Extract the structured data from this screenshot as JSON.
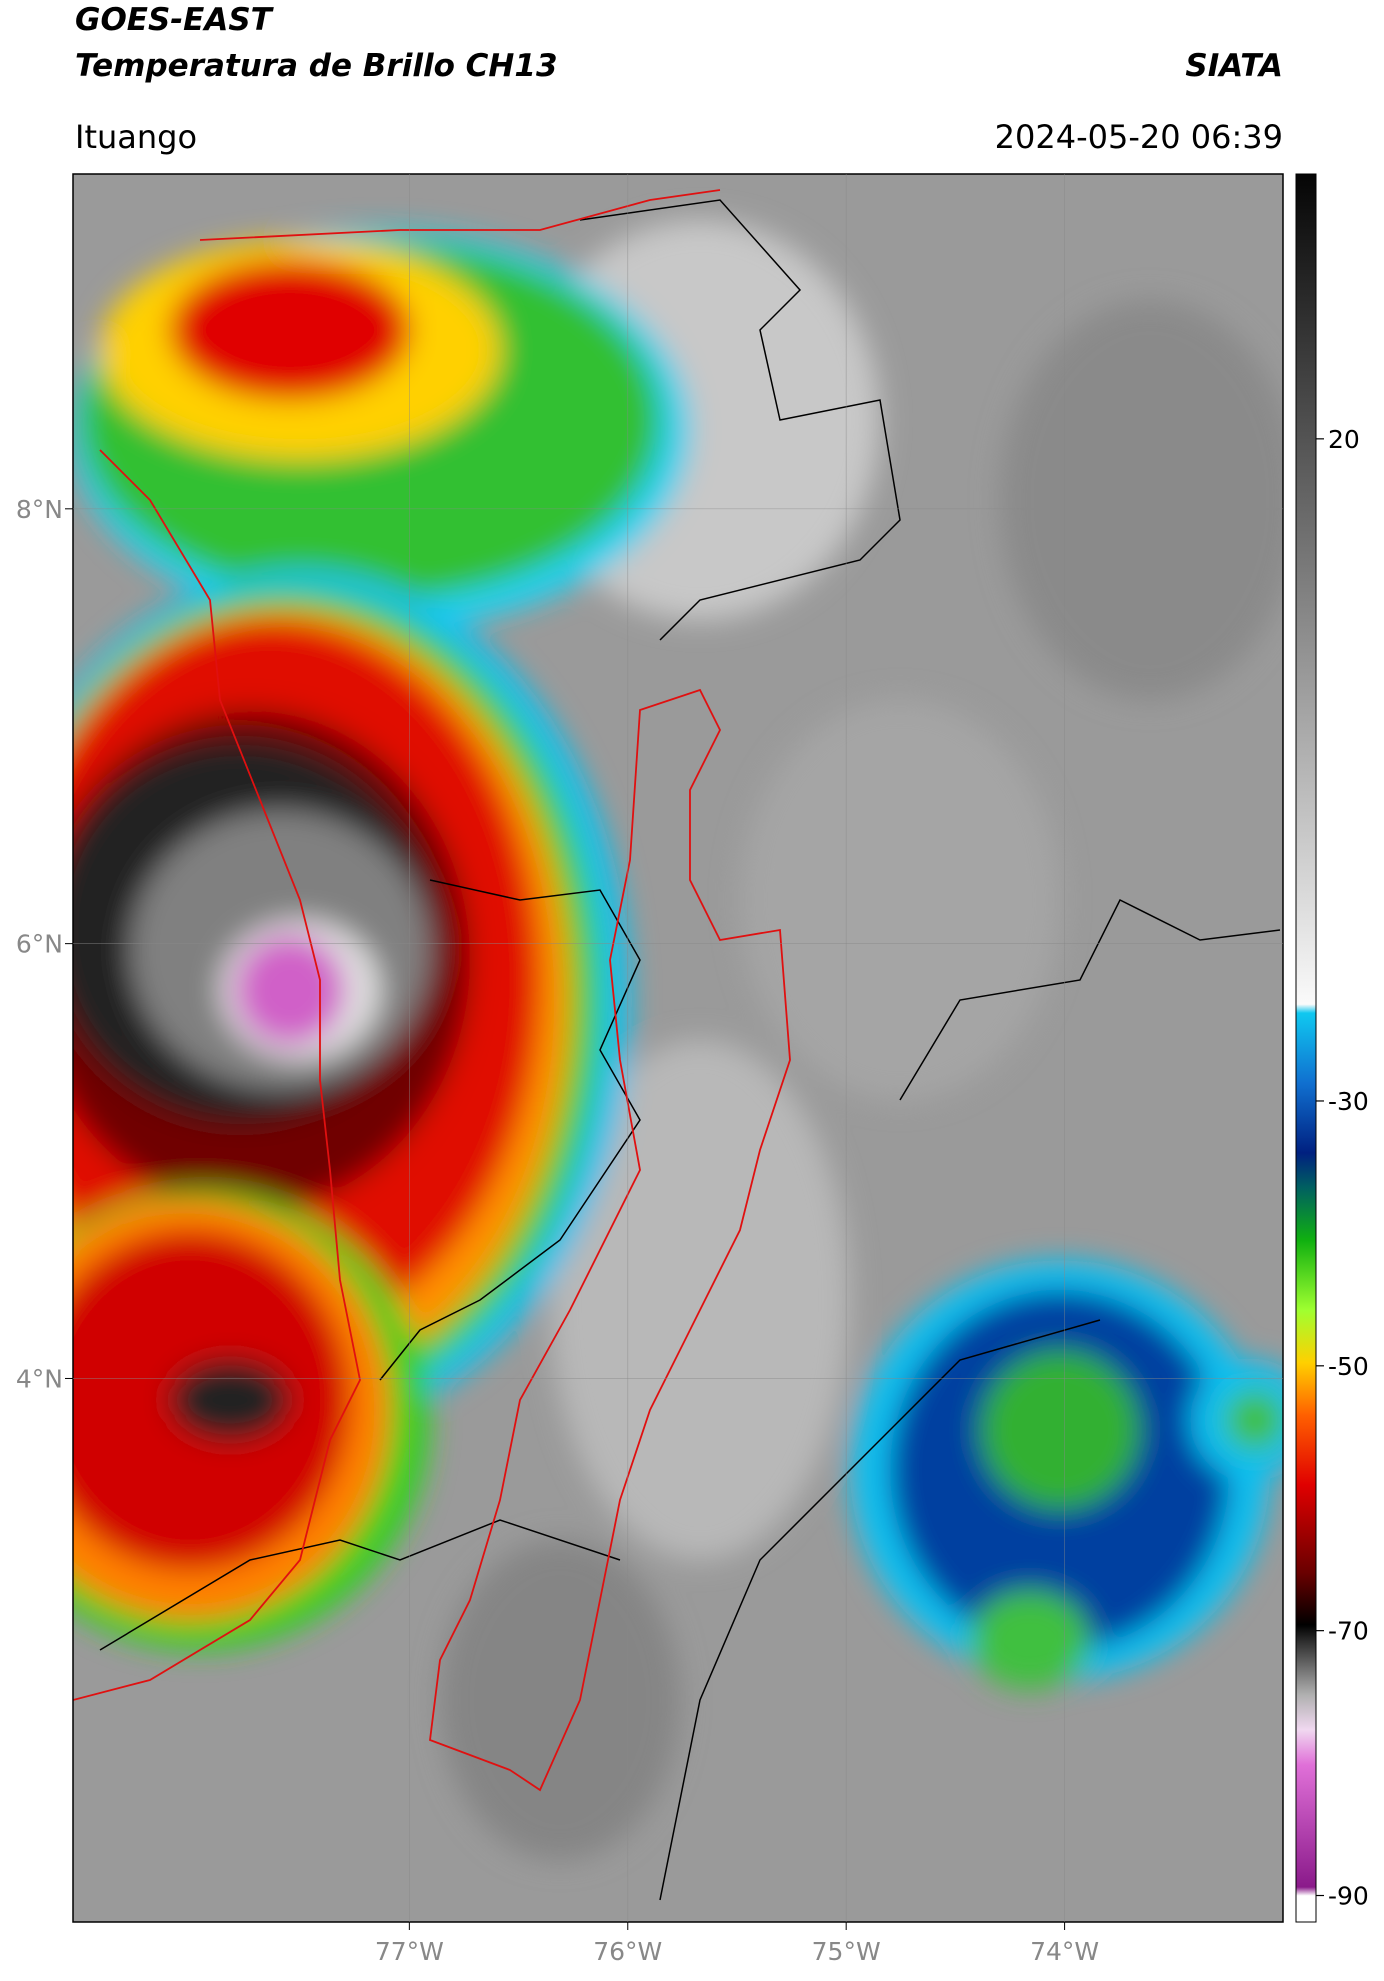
{
  "header": {
    "title_line1": "GOES-EAST",
    "title_line2": "Temperatura de Brillo CH13",
    "source": "SIATA",
    "location": "Ituango",
    "timestamp": "2024-05-20 06:39"
  },
  "map": {
    "xlim": [
      -78.54,
      -73.0
    ],
    "ylim": [
      1.5,
      9.54
    ],
    "xticks": [
      {
        "value": -77,
        "label": "77°W"
      },
      {
        "value": -76,
        "label": "76°W"
      },
      {
        "value": -75,
        "label": "75°W"
      },
      {
        "value": -74,
        "label": "74°W"
      }
    ],
    "yticks": [
      {
        "value": 8,
        "label": "8°N"
      },
      {
        "value": 6,
        "label": "6°N"
      },
      {
        "value": 4,
        "label": "4°N"
      }
    ]
  },
  "colorbar": {
    "lim": [
      -92,
      40
    ],
    "ticks": [
      20,
      -30,
      -50,
      -70,
      -90
    ]
  }
}
